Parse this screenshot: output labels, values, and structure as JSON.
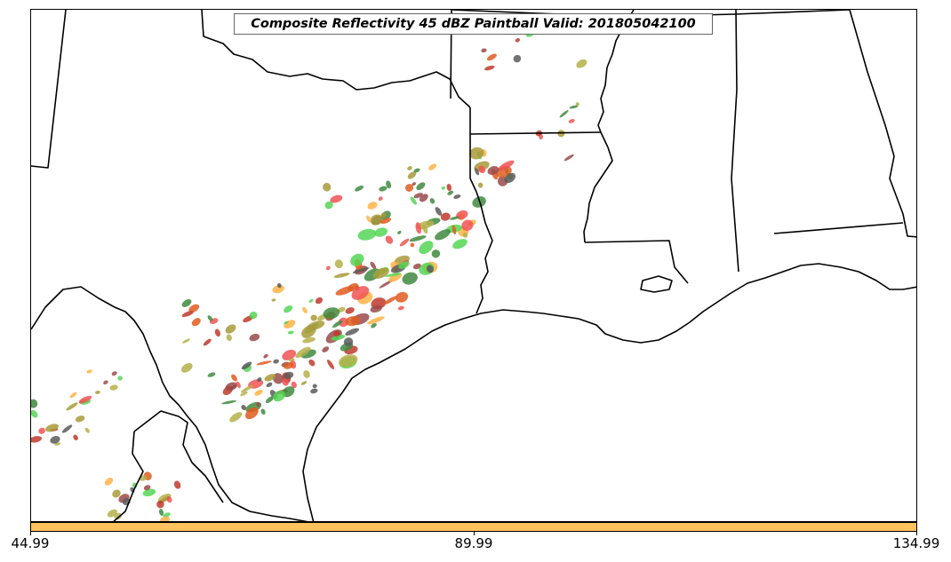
{
  "title": "Composite Reflectivity 45 dBZ Paintball Valid: 201805042100",
  "colorbar": {
    "color": "#ffc25e",
    "ticks": [
      "44.99",
      "89.99",
      "134.99"
    ]
  },
  "colors": {
    "member_palette": [
      "#f05454",
      "#ffb347",
      "#55d655",
      "#5a5a5a",
      "#b5b04a",
      "#9a4a4a",
      "#3f8a3f",
      "#e05c20",
      "#a89a3a",
      "#c0392b"
    ],
    "boundary": "#000000"
  },
  "map": {
    "region": "South-central United States (Texas, Oklahoma, Arkansas, Louisiana, Mississippi, Alabama) and northern Mexico",
    "boundary_layers": [
      "state borders",
      "coastline",
      "international border"
    ]
  }
}
